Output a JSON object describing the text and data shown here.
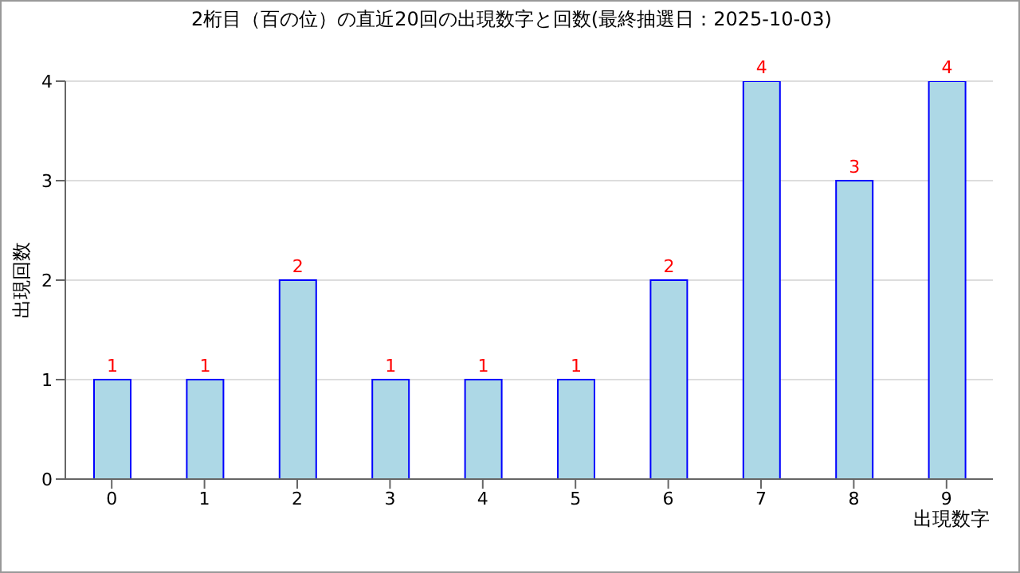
{
  "chart_data": {
    "type": "bar",
    "title": "2桁目（百の位）の直近20回の出現数字と回数(最終抽選日：2025-10-03)",
    "xlabel": "出現数字",
    "ylabel": "出現回数",
    "categories": [
      "0",
      "1",
      "2",
      "3",
      "4",
      "5",
      "6",
      "7",
      "8",
      "9"
    ],
    "values": [
      1,
      1,
      2,
      1,
      1,
      1,
      2,
      4,
      3,
      4
    ],
    "color": "#add8e6",
    "ylim": [
      0,
      4
    ],
    "yticks": [
      0,
      1,
      2,
      3,
      4
    ],
    "grid": "y",
    "data_labels": true
  }
}
